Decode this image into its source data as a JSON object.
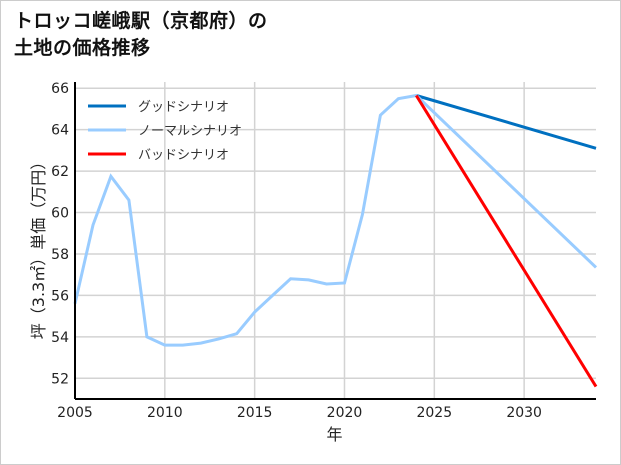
{
  "title_line1": "トロッコ嵯峨駅（京都府）の",
  "title_line2": "土地の価格推移",
  "chart_data": {
    "type": "line",
    "title": "トロッコ嵯峨駅（京都府）の土地の価格推移",
    "xlabel": "年",
    "ylabel": "坪（3.3㎡）単価（万円）",
    "xlim": [
      2005,
      2034
    ],
    "ylim": [
      51,
      66.3
    ],
    "xticks": [
      2005,
      2010,
      2015,
      2020,
      2025,
      2030
    ],
    "yticks": [
      52,
      54,
      56,
      58,
      60,
      62,
      64,
      66
    ],
    "grid": true,
    "legend_position": "upper left",
    "series": [
      {
        "name": "グッドシナリオ",
        "color": "#0070C0",
        "x": [
          2024,
          2034
        ],
        "values": [
          65.65,
          63.1
        ]
      },
      {
        "name": "ノーマルシナリオ",
        "color": "#99CCFF",
        "x": [
          2005,
          2006,
          2007,
          2008,
          2009,
          2010,
          2011,
          2012,
          2013,
          2014,
          2015,
          2016,
          2017,
          2018,
          2019,
          2020,
          2021,
          2022,
          2023,
          2024,
          2034
        ],
        "values": [
          55.6,
          59.4,
          61.75,
          60.6,
          54.0,
          53.6,
          53.6,
          53.7,
          53.9,
          54.15,
          55.2,
          56.0,
          56.8,
          56.75,
          56.55,
          56.6,
          59.9,
          64.7,
          65.5,
          65.65,
          57.35
        ]
      },
      {
        "name": "バッドシナリオ",
        "color": "#FF0000",
        "x": [
          2024,
          2034
        ],
        "values": [
          65.65,
          51.6
        ]
      }
    ]
  }
}
